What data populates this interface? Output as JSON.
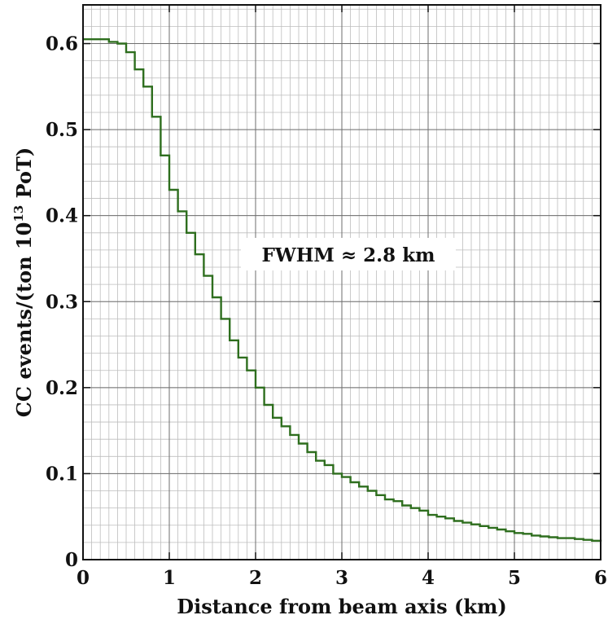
{
  "chart_data": {
    "type": "line",
    "style": "step",
    "xlabel": "Distance from beam axis (km)",
    "ylabel": {
      "prefix": "CC events/(ton 10",
      "exponent": "13",
      "suffix": " PoT)"
    },
    "xlim": [
      0,
      6
    ],
    "ylim": [
      0,
      0.6
    ],
    "xticks": [
      "0",
      "1",
      "2",
      "3",
      "4",
      "5",
      "6"
    ],
    "yticks": [
      "0",
      "0.1",
      "0.2",
      "0.3",
      "0.4",
      "0.5",
      "0.6"
    ],
    "grid": true,
    "annotation": "FWHM ≈ 2.8 km",
    "line_color": "#2e6e1e",
    "series": [
      {
        "x": [
          0.0,
          0.1,
          0.2,
          0.3,
          0.4,
          0.5,
          0.6,
          0.7,
          0.8,
          0.9,
          1.0,
          1.1,
          1.2,
          1.3,
          1.4,
          1.5,
          1.6,
          1.7,
          1.8,
          1.9,
          2.0,
          2.1,
          2.2,
          2.3,
          2.4,
          2.5,
          2.6,
          2.7,
          2.8,
          2.9,
          3.0,
          3.1,
          3.2,
          3.3,
          3.4,
          3.5,
          3.6,
          3.7,
          3.8,
          3.9,
          4.0,
          4.1,
          4.2,
          4.3,
          4.4,
          4.5,
          4.6,
          4.7,
          4.8,
          4.9,
          5.0,
          5.1,
          5.2,
          5.3,
          5.4,
          5.5,
          5.6,
          5.7,
          5.8,
          5.9,
          6.0
        ],
        "y": [
          0.605,
          0.605,
          0.605,
          0.602,
          0.6,
          0.59,
          0.57,
          0.55,
          0.515,
          0.47,
          0.43,
          0.405,
          0.38,
          0.355,
          0.33,
          0.305,
          0.28,
          0.255,
          0.235,
          0.22,
          0.2,
          0.18,
          0.165,
          0.155,
          0.145,
          0.135,
          0.125,
          0.115,
          0.11,
          0.1,
          0.096,
          0.09,
          0.085,
          0.08,
          0.075,
          0.07,
          0.068,
          0.063,
          0.06,
          0.057,
          0.052,
          0.05,
          0.048,
          0.045,
          0.043,
          0.041,
          0.039,
          0.037,
          0.035,
          0.033,
          0.031,
          0.03,
          0.028,
          0.027,
          0.026,
          0.025,
          0.025,
          0.024,
          0.023,
          0.022,
          0.021
        ]
      }
    ]
  }
}
